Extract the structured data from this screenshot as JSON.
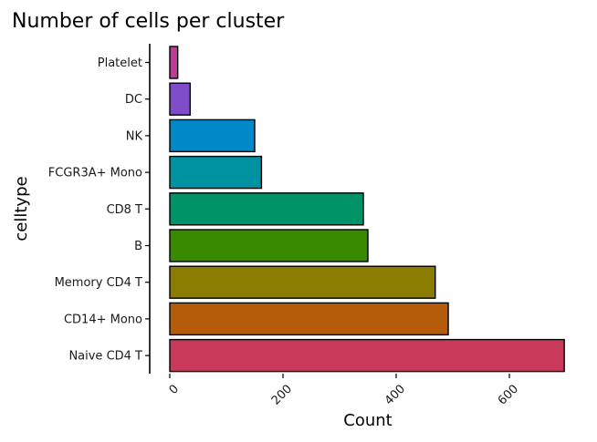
{
  "chart_data": {
    "type": "bar",
    "orientation": "horizontal",
    "title": "Number of cells per cluster",
    "xlabel": "Count",
    "ylabel": "celltype",
    "xlim": [
      0,
      700
    ],
    "x_ticks": [
      0,
      200,
      400,
      600
    ],
    "grid": false,
    "legend": "none",
    "categories": [
      "Platelet",
      "DC",
      "NK",
      "FCGR3A+ Mono",
      "CD8 T",
      "B",
      "Memory CD4 T",
      "CD14+ Mono",
      "Naive CD4 T"
    ],
    "values": [
      14,
      36,
      150,
      162,
      342,
      350,
      469,
      492,
      697
    ],
    "colors": [
      "#C03A97",
      "#7E4BC9",
      "#0088C9",
      "#0092A0",
      "#009368",
      "#3A8A00",
      "#8A7C00",
      "#B45C0A",
      "#C8395A"
    ]
  }
}
